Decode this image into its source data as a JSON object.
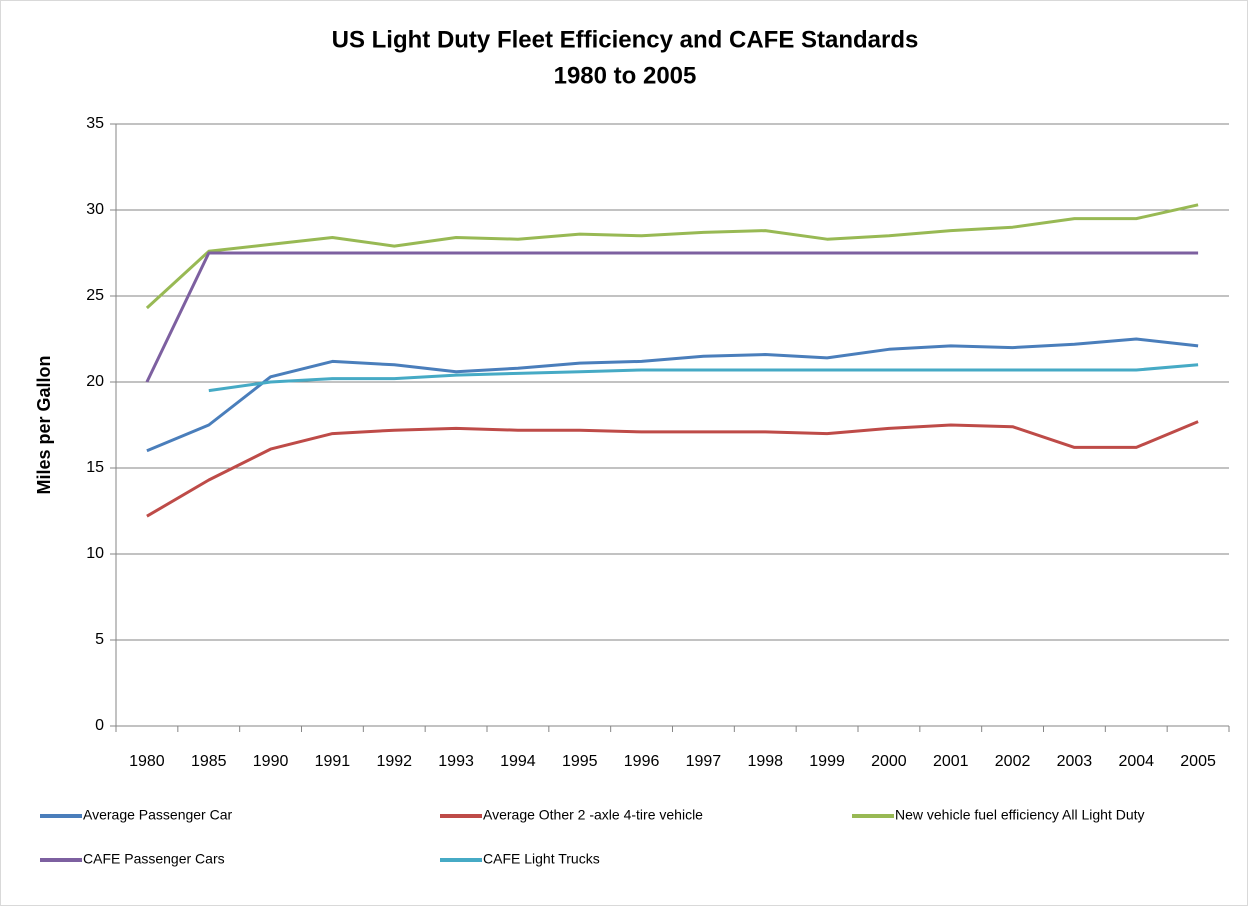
{
  "chart_data": {
    "type": "line",
    "title": "US Light Duty Fleet Efficiency and CAFE Standards",
    "subtitle": "1980 to 2005",
    "y_label": "Miles per Gallon",
    "categories": [
      "1980",
      "1985",
      "1990",
      "1991",
      "1992",
      "1993",
      "1994",
      "1995",
      "1996",
      "1997",
      "1998",
      "1999",
      "2000",
      "2001",
      "2002",
      "2003",
      "2004",
      "2005"
    ],
    "ylim": [
      0,
      35
    ],
    "yticks": [
      0,
      5,
      10,
      15,
      20,
      25,
      30,
      35
    ],
    "grid": true,
    "legend": "bottom",
    "series": [
      {
        "name": "Average Passenger Car",
        "color": "#4a7ebb",
        "values": [
          16.0,
          17.5,
          20.3,
          21.2,
          21.0,
          20.6,
          20.8,
          21.1,
          21.2,
          21.5,
          21.6,
          21.4,
          21.9,
          22.1,
          22.0,
          22.2,
          22.5,
          22.1
        ]
      },
      {
        "name": "Average Other 2 -axle 4-tire vehicle",
        "color": "#be4b48",
        "values": [
          12.2,
          14.3,
          16.1,
          17.0,
          17.2,
          17.3,
          17.2,
          17.2,
          17.1,
          17.1,
          17.1,
          17.0,
          17.3,
          17.5,
          17.4,
          16.2,
          16.2,
          17.7
        ]
      },
      {
        "name": "New vehicle fuel efficiency All Light Duty",
        "color": "#98b954",
        "values": [
          24.3,
          27.6,
          28.0,
          28.4,
          27.9,
          28.4,
          28.3,
          28.6,
          28.5,
          28.7,
          28.8,
          28.3,
          28.5,
          28.8,
          29.0,
          29.5,
          29.5,
          30.3
        ]
      },
      {
        "name": "CAFE Passenger Cars",
        "color": "#7d60a0",
        "values": [
          20.0,
          27.5,
          27.5,
          27.5,
          27.5,
          27.5,
          27.5,
          27.5,
          27.5,
          27.5,
          27.5,
          27.5,
          27.5,
          27.5,
          27.5,
          27.5,
          27.5,
          27.5
        ]
      },
      {
        "name": "CAFE Light Trucks",
        "color": "#46aac5",
        "values": [
          null,
          19.5,
          20.0,
          20.2,
          20.2,
          20.4,
          20.5,
          20.6,
          20.7,
          20.7,
          20.7,
          20.7,
          20.7,
          20.7,
          20.7,
          20.7,
          20.7,
          21.0
        ]
      }
    ]
  }
}
